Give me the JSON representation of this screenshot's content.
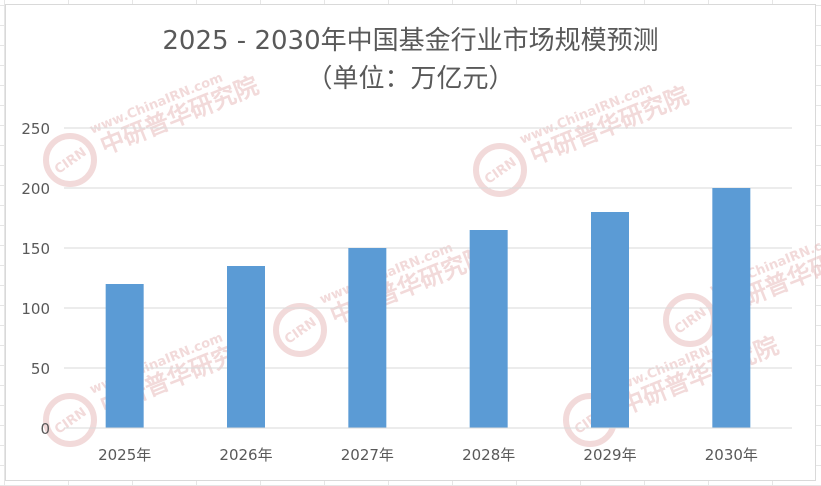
{
  "chart_data": {
    "type": "bar",
    "title": "2025 - 2030年中国基金行业市场规模预测",
    "subtitle": "（单位：万亿元）",
    "categories": [
      "2025年",
      "2026年",
      "2027年",
      "2028年",
      "2029年",
      "2030年"
    ],
    "series": [
      {
        "values": [
          120,
          135,
          150,
          165,
          180,
          200
        ]
      }
    ],
    "ylim": [
      0,
      250
    ],
    "yticks": [
      "0",
      "50",
      "100",
      "150",
      "200",
      "250"
    ],
    "xlabel": "",
    "ylabel": "",
    "grid": true,
    "bar_color": "#5b9bd5",
    "gridline_color": "#d9d9d9"
  },
  "watermark": {
    "logo": "CIRN",
    "url": "www.ChinaIRN.com",
    "name": "中研普华研究院",
    "color": "#e8bcbc"
  }
}
